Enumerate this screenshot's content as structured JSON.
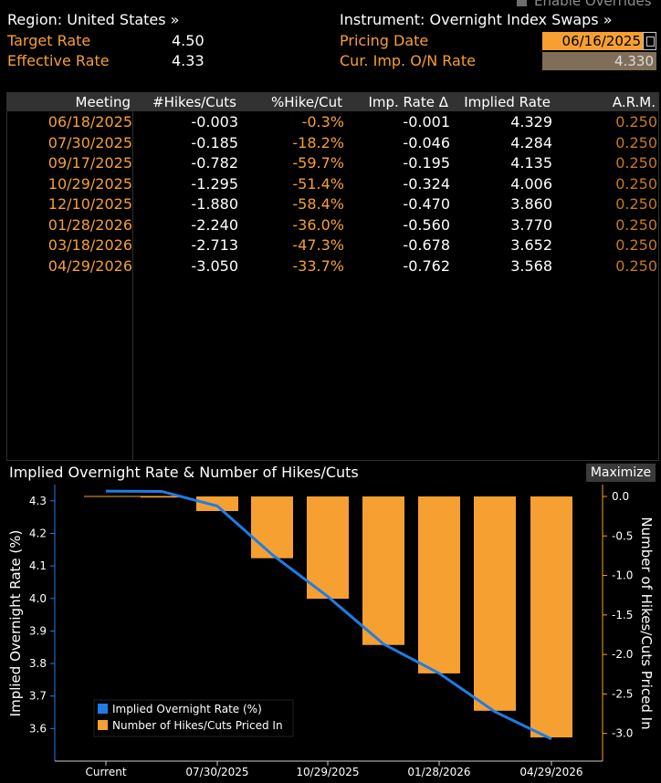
{
  "overrides": {
    "label": "Enable Overrides"
  },
  "region": {
    "label": "Region: United States »"
  },
  "instrument": {
    "label": "Instrument: Overnight Index Swaps »"
  },
  "target_rate": {
    "label": "Target Rate",
    "value": "4.50"
  },
  "effective_rate": {
    "label": "Effective Rate",
    "value": "4.33"
  },
  "pricing_date": {
    "label": "Pricing Date",
    "value": "06/16/2025"
  },
  "cur_imp_rate": {
    "label": "Cur. Imp. O/N Rate",
    "value": "4.330"
  },
  "table": {
    "headers": [
      "Meeting",
      "#Hikes/Cuts",
      "%Hike/Cut",
      "Imp. Rate Δ",
      "Implied Rate",
      "A.R.M."
    ],
    "rows": [
      [
        "06/18/2025",
        "-0.003",
        "-0.3%",
        "-0.001",
        "4.329",
        "0.250"
      ],
      [
        "07/30/2025",
        "-0.185",
        "-18.2%",
        "-0.046",
        "4.284",
        "0.250"
      ],
      [
        "09/17/2025",
        "-0.782",
        "-59.7%",
        "-0.195",
        "4.135",
        "0.250"
      ],
      [
        "10/29/2025",
        "-1.295",
        "-51.4%",
        "-0.324",
        "4.006",
        "0.250"
      ],
      [
        "12/10/2025",
        "-1.880",
        "-58.4%",
        "-0.470",
        "3.860",
        "0.250"
      ],
      [
        "01/28/2026",
        "-2.240",
        "-36.0%",
        "-0.560",
        "3.770",
        "0.250"
      ],
      [
        "03/18/2026",
        "-2.713",
        "-47.3%",
        "-0.678",
        "3.652",
        "0.250"
      ],
      [
        "04/29/2026",
        "-3.050",
        "-33.7%",
        "-0.762",
        "3.568",
        "0.250"
      ]
    ]
  },
  "chart": {
    "title": "Implied Overnight Rate & Number of Hikes/Cuts",
    "maximize_label": "Maximize"
  },
  "chart_data": {
    "type": "bar",
    "title": "Implied Overnight Rate & Number of Hikes/Cuts",
    "categories": [
      "Current",
      "06/18/2025",
      "07/30/2025",
      "09/17/2025",
      "10/29/2025",
      "12/10/2025",
      "01/28/2026",
      "03/18/2026",
      "04/29/2026"
    ],
    "x_tick_labels": [
      "Current",
      "07/30/2025",
      "10/29/2025",
      "01/28/2026",
      "04/29/2026"
    ],
    "ylabel": "Implied Overnight Rate (%)",
    "y2label": "Number of Hikes/Cuts Priced In",
    "ylim": [
      3.5,
      4.35
    ],
    "y2lim": [
      -3.35,
      0.15
    ],
    "y_ticks": [
      "3.6",
      "3.7",
      "3.8",
      "3.9",
      "4.0",
      "4.1",
      "4.2",
      "4.3"
    ],
    "y2_ticks": [
      "0.0",
      "-0.5",
      "-1.0",
      "-1.5",
      "-2.0",
      "-2.5",
      "-3.0"
    ],
    "legend_position": "bottom-left",
    "series": [
      {
        "name": "Implied Overnight Rate (%)",
        "type": "line",
        "color": "#1e7de6",
        "values": [
          4.33,
          4.329,
          4.284,
          4.135,
          4.006,
          3.86,
          3.77,
          3.652,
          3.568
        ]
      },
      {
        "name": "Number of Hikes/Cuts Priced In",
        "type": "bar",
        "color": "#f6a032",
        "values": [
          0,
          -0.003,
          -0.185,
          -0.782,
          -1.295,
          -1.88,
          -2.24,
          -2.713,
          -3.05
        ]
      }
    ]
  }
}
